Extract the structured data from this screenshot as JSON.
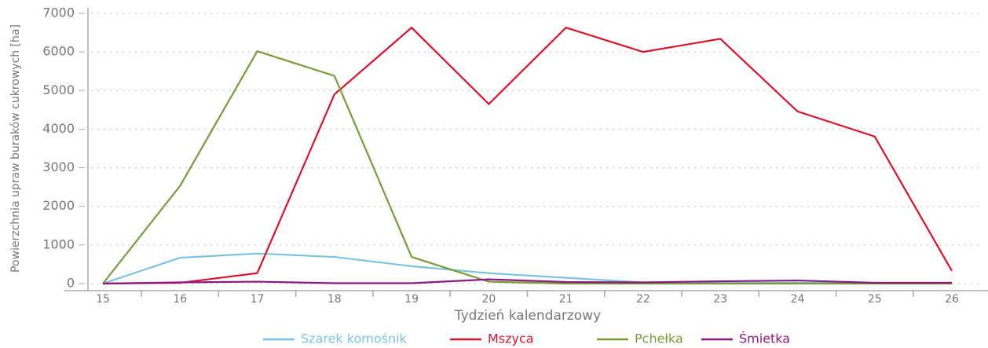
{
  "chart_data": {
    "type": "line",
    "x_label": "Tydzień kalendarzowy",
    "y_label": "Powierzchnia upraw buraków cukrowych [ha]",
    "x": [
      15,
      16,
      17,
      18,
      19,
      20,
      21,
      22,
      23,
      24,
      25,
      26
    ],
    "xlim": [
      15,
      26
    ],
    "xticks": [
      15,
      16,
      17,
      18,
      19,
      20,
      21,
      22,
      23,
      24,
      25,
      26
    ],
    "ylim": [
      0,
      7000
    ],
    "yticks": [
      0,
      1000,
      2000,
      3000,
      4000,
      5000,
      6000,
      7000
    ],
    "grid": true,
    "legend": "bottom",
    "series": [
      {
        "name": "Szarek komośnik",
        "color": "#7cc3df",
        "values": [
          0,
          670,
          780,
          690,
          450,
          270,
          150,
          30,
          20,
          20,
          10,
          10
        ]
      },
      {
        "name": "Mszyca",
        "color": "#d7132c",
        "values": [
          0,
          20,
          270,
          4900,
          6630,
          4650,
          6630,
          6000,
          6340,
          4460,
          3810,
          330
        ]
      },
      {
        "name": "Pchełka",
        "color": "#7a9a3a",
        "values": [
          0,
          2530,
          6020,
          5380,
          690,
          50,
          0,
          0,
          0,
          0,
          0,
          0
        ]
      },
      {
        "name": "Śmietka",
        "color": "#8b1a7e",
        "values": [
          0,
          30,
          50,
          10,
          10,
          110,
          40,
          30,
          60,
          80,
          20,
          20
        ]
      }
    ]
  }
}
